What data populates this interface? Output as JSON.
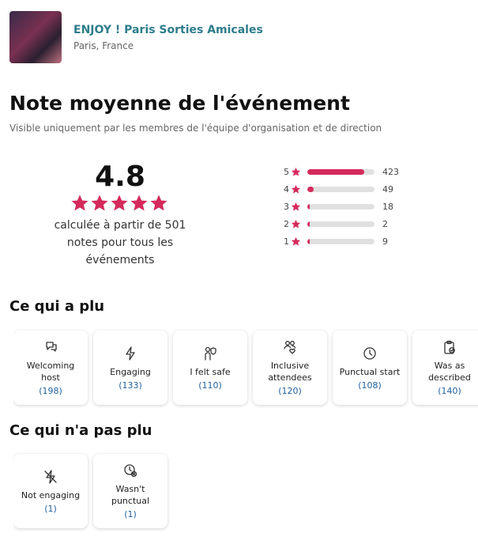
{
  "group": {
    "name": "ENJOY ! Paris Sorties Amicales",
    "location": "Paris, France"
  },
  "header": {
    "title": "Note moyenne de l'événement",
    "subtitle": "Visible uniquement par les membres de l'équipe d'organisation et de direction"
  },
  "rating": {
    "average": "4.8",
    "caption": "calculée à partir de 501 notes pour tous les événements"
  },
  "distribution": [
    {
      "stars": "5",
      "count": 423
    },
    {
      "stars": "4",
      "count": 49
    },
    {
      "stars": "3",
      "count": 18
    },
    {
      "stars": "2",
      "count": 2
    },
    {
      "stars": "1",
      "count": 9
    }
  ],
  "liked": {
    "title": "Ce qui a plu",
    "items": [
      {
        "label": "Welcoming host",
        "count": "(198)"
      },
      {
        "label": "Engaging",
        "count": "(133)"
      },
      {
        "label": "I felt safe",
        "count": "(110)"
      },
      {
        "label": "Inclusive attendees",
        "count": "(120)"
      },
      {
        "label": "Punctual start",
        "count": "(108)"
      },
      {
        "label": "Was as described",
        "count": "(140)"
      }
    ]
  },
  "disliked": {
    "title": "Ce qui n'a pas plu",
    "items": [
      {
        "label": "Not engaging",
        "count": "(1)"
      },
      {
        "label": "Wasn't punctual",
        "count": "(1)"
      }
    ]
  }
}
